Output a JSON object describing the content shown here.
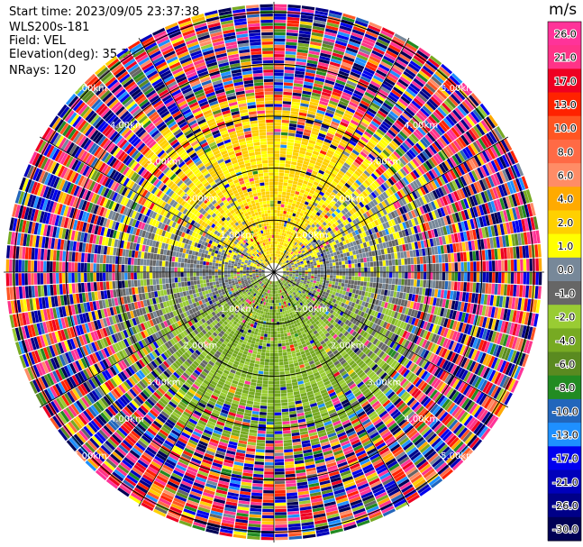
{
  "header": {
    "start_time": "Start time: 2023/09/05 23:37:38",
    "instrument": "WLS200s-181",
    "field": "Field: VEL",
    "elevation": "Elevation(deg): 35.30",
    "nrays": "NRays: 120"
  },
  "chart_data": {
    "type": "polar-ppi",
    "field": "VEL",
    "units": "m/s",
    "nrays": 120,
    "elevation_deg": 35.3,
    "range_rings_km": [
      1.0,
      2.0,
      3.0,
      4.0,
      5.0
    ],
    "ring_labels": [
      "1.00km",
      "2.00km",
      "3.00km",
      "4.00km",
      "5.00km"
    ],
    "spoke_angles_deg": [
      0,
      30,
      60,
      90,
      120,
      150,
      180,
      210,
      240,
      270,
      300,
      330
    ],
    "max_range_km": 5.2,
    "colorbar": {
      "unit_label": "m/s",
      "ticks": [
        "26.0",
        "21.0",
        "17.0",
        "13.0",
        "10.0",
        "8.0",
        "6.0",
        "4.0",
        "2.0",
        "1.0",
        "0.0",
        "-1.0",
        "-2.0",
        "-4.0",
        "-6.0",
        "-8.0",
        "-10.0",
        "-13.0",
        "-17.0",
        "-21.0",
        "-26.0",
        "-30.0"
      ],
      "bins": [
        {
          "lo": 26,
          "hi": 30,
          "color": "#ff3399"
        },
        {
          "lo": 21,
          "hi": 26,
          "color": "#ff3388"
        },
        {
          "lo": 17,
          "hi": 21,
          "color": "#ee0022"
        },
        {
          "lo": 13,
          "hi": 17,
          "color": "#ff2200"
        },
        {
          "lo": 10,
          "hi": 13,
          "color": "#ff5522"
        },
        {
          "lo": 8,
          "hi": 10,
          "color": "#ff6a45"
        },
        {
          "lo": 6,
          "hi": 8,
          "color": "#ff8c66"
        },
        {
          "lo": 4,
          "hi": 6,
          "color": "#ffaa00"
        },
        {
          "lo": 2,
          "hi": 4,
          "color": "#ffd000"
        },
        {
          "lo": 1,
          "hi": 2,
          "color": "#ffff00"
        },
        {
          "lo": 0,
          "hi": 1,
          "color": "#778899"
        },
        {
          "lo": -1,
          "hi": 0,
          "color": "#666666"
        },
        {
          "lo": -2,
          "hi": -1,
          "color": "#99cc33"
        },
        {
          "lo": -4,
          "hi": -2,
          "color": "#77aa22"
        },
        {
          "lo": -6,
          "hi": -4,
          "color": "#5a8a20"
        },
        {
          "lo": -8,
          "hi": -6,
          "color": "#228b22"
        },
        {
          "lo": -10,
          "hi": -8,
          "color": "#2266bb"
        },
        {
          "lo": -13,
          "hi": -10,
          "color": "#1e90ff"
        },
        {
          "lo": -17,
          "hi": -13,
          "color": "#0000ee"
        },
        {
          "lo": -21,
          "hi": -17,
          "color": "#0000bb"
        },
        {
          "lo": -26,
          "hi": -21,
          "color": "#000088"
        },
        {
          "lo": -30,
          "hi": -26,
          "color": "#000055"
        }
      ]
    }
  }
}
